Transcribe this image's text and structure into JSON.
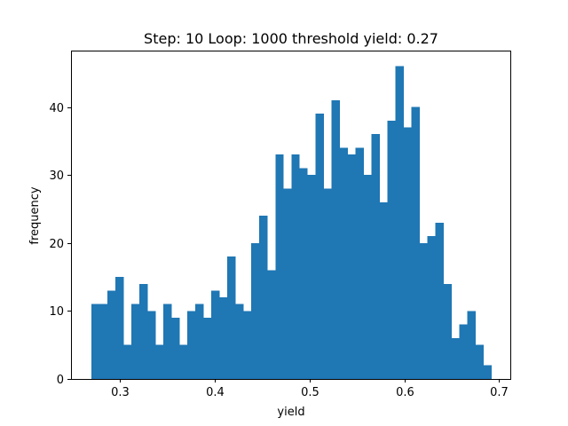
{
  "chart_data": {
    "type": "bar",
    "title": "Step: 10 Loop: 1000 threshold yield: 0.27",
    "xlabel": "yield",
    "ylabel": "frequency",
    "x_start": 0.2695,
    "bin_width": 0.00845,
    "values": [
      11,
      11,
      13,
      15,
      5,
      11,
      14,
      10,
      5,
      11,
      9,
      5,
      10,
      11,
      9,
      13,
      12,
      18,
      11,
      10,
      20,
      24,
      16,
      33,
      28,
      33,
      31,
      30,
      39,
      28,
      41,
      34,
      33,
      34,
      30,
      36,
      26,
      38,
      46,
      37,
      40,
      20,
      21,
      23,
      14,
      6,
      8,
      10,
      5,
      2
    ],
    "xlim": [
      0.248,
      0.712
    ],
    "ylim": [
      0,
      48.3
    ],
    "xticks": [
      0.3,
      0.4,
      0.5,
      0.6,
      0.7
    ],
    "xtick_labels": [
      "0.3",
      "0.4",
      "0.5",
      "0.6",
      "0.7"
    ],
    "yticks": [
      0,
      10,
      20,
      30,
      40
    ],
    "ytick_labels": [
      "0",
      "10",
      "20",
      "30",
      "40"
    ],
    "bar_color": "#1f77b4",
    "grid": false,
    "legend": "none"
  }
}
